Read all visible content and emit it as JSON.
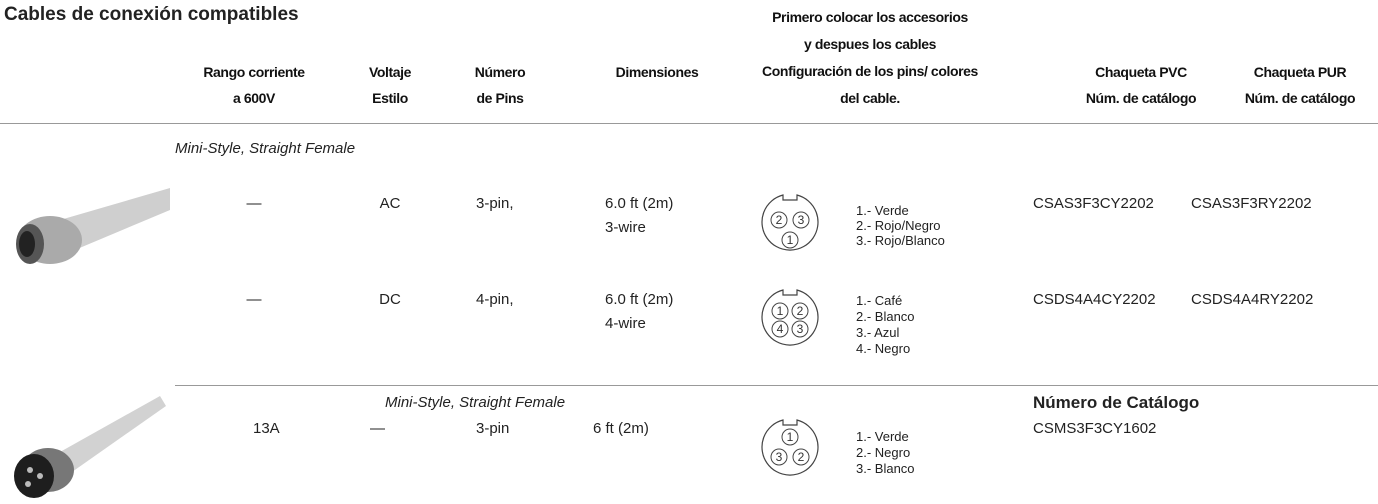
{
  "title": "Cables de conexión compatibles",
  "table": {
    "headers": [
      [
        "Rango corriente",
        "a 600V"
      ],
      [
        "Voltaje",
        "Estilo"
      ],
      [
        "Número",
        "de Pins"
      ],
      [
        "Dimensiones"
      ],
      [
        "Primero colocar los accesorios",
        "y despues los cables",
        "Configuración de los pins/ colores",
        "del cable."
      ],
      [
        "Chaqueta PVC",
        "Núm. de catálogo"
      ],
      [
        "Chaqueta PUR",
        "Núm. de catálogo"
      ]
    ],
    "sections": [
      {
        "label": "Mini-Style, Straight Female",
        "rows": [
          {
            "current": "—",
            "voltage": "AC",
            "pins": "3-pin,",
            "dimensions": [
              "6.0 ft (2m)",
              "3-wire"
            ],
            "pin_numbers": [
              "2",
              "3",
              "1"
            ],
            "wire_colors": [
              "1.- Verde",
              "2.- Rojo/Negro",
              "3.- Rojo/Blanco"
            ],
            "pvc": "CSAS3F3CY2202",
            "pur": "CSAS3F3RY2202"
          },
          {
            "current": "—",
            "voltage": "DC",
            "pins": "4-pin,",
            "dimensions": [
              "6.0 ft (2m)",
              "4-wire"
            ],
            "pin_numbers": [
              "1",
              "2",
              "4",
              "3"
            ],
            "wire_colors": [
              "1.- Café",
              "2.- Blanco",
              "3.- Azul",
              "4.- Negro"
            ],
            "pvc": "CSDS4A4CY2202",
            "pur": "CSDS4A4RY2202"
          }
        ]
      },
      {
        "label": "Mini-Style, Straight Female",
        "catalog_heading": "Número de Catálogo",
        "rows": [
          {
            "current": "13A",
            "voltage": "—",
            "pins": "3-pin",
            "dimensions": [
              "6 ft (2m)"
            ],
            "pin_numbers": [
              "1",
              "3",
              "2"
            ],
            "wire_colors": [
              "1.- Verde",
              "2.- Negro",
              "3.- Blanco"
            ],
            "pvc": "CSMS3F3CY1602"
          }
        ]
      }
    ]
  }
}
